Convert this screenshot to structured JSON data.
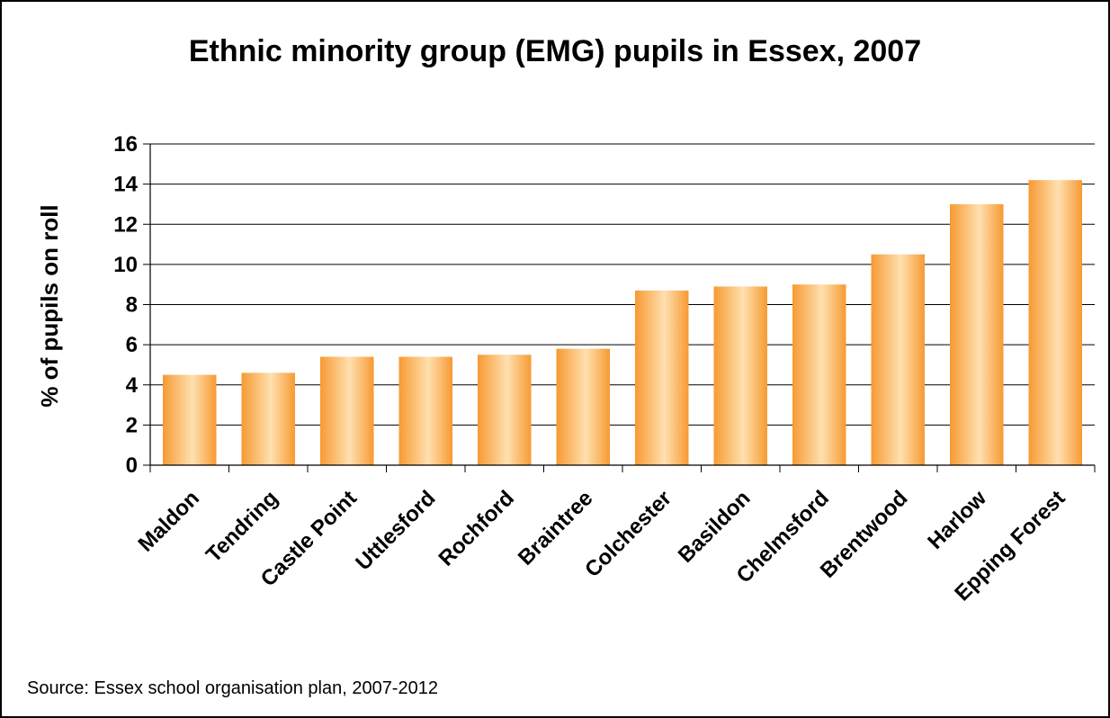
{
  "chart_data": {
    "type": "bar",
    "title": "Ethnic minority group (EMG) pupils in Essex, 2007",
    "xlabel": "",
    "ylabel": "% of pupils on roll",
    "ylim": [
      0,
      16
    ],
    "yticks": [
      0,
      2,
      4,
      6,
      8,
      10,
      12,
      14,
      16
    ],
    "grid": true,
    "categories": [
      "Maldon",
      "Tendring",
      "Castle Point",
      "Uttlesford",
      "Rochford",
      "Braintree",
      "Colchester",
      "Basildon",
      "Chelmsford",
      "Brentwood",
      "Harlow",
      "Epping Forest"
    ],
    "values": [
      4.5,
      4.6,
      5.4,
      5.4,
      5.5,
      5.8,
      8.7,
      8.9,
      9.0,
      10.5,
      13.0,
      14.2
    ],
    "bar_color": "#F79A32",
    "bar_highlight": "#FFE0B0",
    "source": "Source: Essex school organisation plan, 2007-2012"
  }
}
